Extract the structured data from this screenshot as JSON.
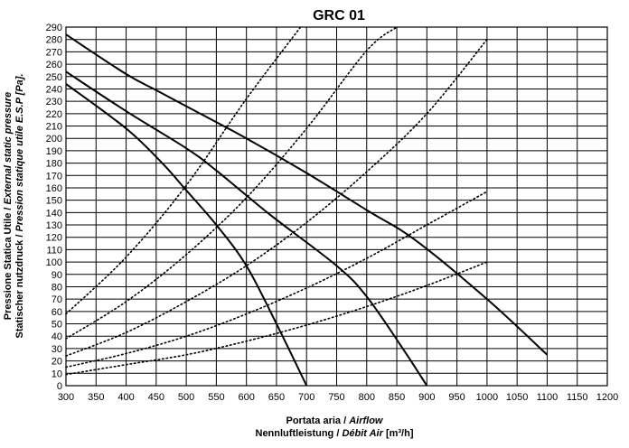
{
  "chart_data": {
    "type": "line",
    "title": "GRC 01",
    "xlabel": {
      "line1_a": "Portata aria / ",
      "line1_b": "Airflow",
      "line2_a": "Nennluftleistung / ",
      "line2_b": "Débit Air",
      "line2_c": "  [m³/h]"
    },
    "ylabel": {
      "line1_a": "Pressione Statica Utile / ",
      "line1_b": "External static pressure",
      "line2_a": "Statischer nutzdruck / ",
      "line2_b": "Pression statique utile E.S.P [Pa]."
    },
    "xlim": [
      300,
      1200
    ],
    "ylim": [
      0,
      290
    ],
    "x_ticks": [
      "300",
      "350",
      "400",
      "450",
      "500",
      "550",
      "600",
      "650",
      "700",
      "750",
      "800",
      "850",
      "900",
      "950",
      "1000",
      "1050",
      "1100",
      "1150",
      "1200"
    ],
    "y_ticks": [
      "0",
      "10",
      "20",
      "30",
      "40",
      "50",
      "60",
      "70",
      "80",
      "90",
      "100",
      "110",
      "120",
      "130",
      "140",
      "150",
      "160",
      "170",
      "180",
      "190",
      "200",
      "210",
      "220",
      "230",
      "240",
      "250",
      "260",
      "270",
      "280",
      "290"
    ],
    "grid": true,
    "series": [
      {
        "style": "solid",
        "points": [
          [
            300,
            284
          ],
          [
            400,
            252
          ],
          [
            450,
            239
          ],
          [
            500,
            226
          ],
          [
            600,
            200
          ],
          [
            700,
            172
          ],
          [
            800,
            142
          ],
          [
            880,
            118
          ],
          [
            1000,
            70
          ],
          [
            1100,
            25
          ]
        ]
      },
      {
        "style": "solid",
        "points": [
          [
            300,
            254
          ],
          [
            400,
            222
          ],
          [
            500,
            192
          ],
          [
            550,
            174
          ],
          [
            640,
            138
          ],
          [
            750,
            97
          ],
          [
            800,
            72
          ],
          [
            860,
            30
          ],
          [
            900,
            0
          ]
        ]
      },
      {
        "style": "solid",
        "points": [
          [
            300,
            244
          ],
          [
            400,
            208
          ],
          [
            460,
            180
          ],
          [
            500,
            158
          ],
          [
            550,
            130
          ],
          [
            600,
            97
          ],
          [
            650,
            50
          ],
          [
            700,
            0
          ]
        ]
      },
      {
        "style": "dotted",
        "points": [
          [
            300,
            58
          ],
          [
            400,
            104
          ],
          [
            500,
            162
          ],
          [
            600,
            232
          ],
          [
            690,
            290
          ]
        ]
      },
      {
        "style": "dotted",
        "points": [
          [
            300,
            38
          ],
          [
            400,
            68
          ],
          [
            500,
            106
          ],
          [
            600,
            152
          ],
          [
            700,
            208
          ],
          [
            800,
            271
          ],
          [
            850,
            290
          ]
        ]
      },
      {
        "style": "dotted",
        "points": [
          [
            300,
            24
          ],
          [
            400,
            43
          ],
          [
            500,
            68
          ],
          [
            600,
            97
          ],
          [
            700,
            132
          ],
          [
            800,
            173
          ],
          [
            900,
            220
          ],
          [
            1000,
            280
          ]
        ]
      },
      {
        "style": "dotted",
        "points": [
          [
            300,
            15
          ],
          [
            400,
            26
          ],
          [
            500,
            40
          ],
          [
            600,
            58
          ],
          [
            700,
            79
          ],
          [
            800,
            103
          ],
          [
            900,
            130
          ],
          [
            1000,
            157
          ]
        ]
      },
      {
        "style": "dotted",
        "points": [
          [
            300,
            9
          ],
          [
            400,
            17
          ],
          [
            500,
            25
          ],
          [
            600,
            36
          ],
          [
            700,
            49
          ],
          [
            800,
            64
          ],
          [
            900,
            81
          ],
          [
            1000,
            100
          ]
        ]
      }
    ]
  }
}
